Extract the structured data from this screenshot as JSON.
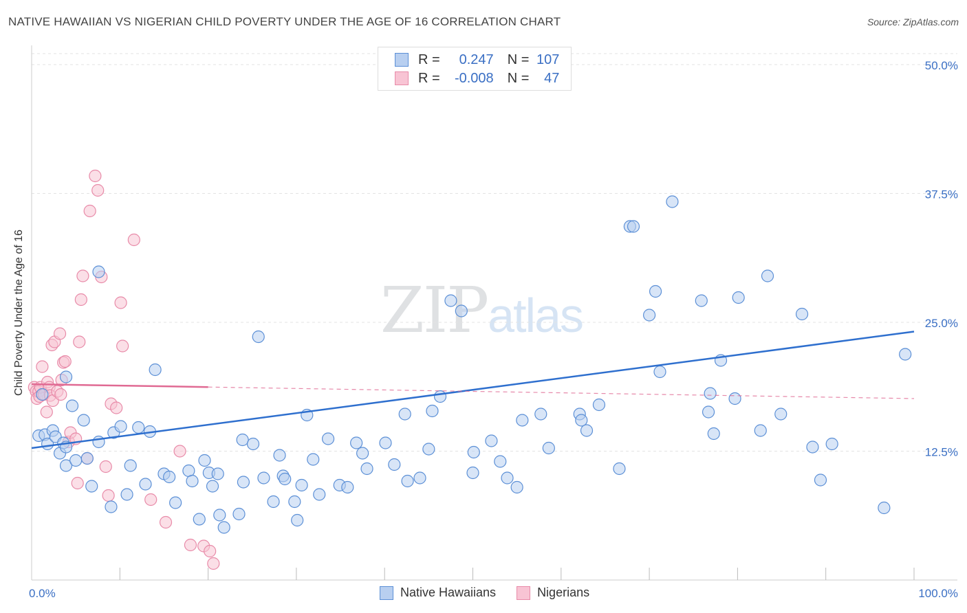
{
  "title": "NATIVE HAWAIIAN VS NIGERIAN CHILD POVERTY UNDER THE AGE OF 16 CORRELATION CHART",
  "source": "Source: ZipAtlas.com",
  "watermark": {
    "zip": "ZIP",
    "atlas": "atlas"
  },
  "legend": {
    "r_label": "R =",
    "n_label": "N =",
    "rows": [
      {
        "r": "0.247",
        "n": "107"
      },
      {
        "r": "-0.008",
        "n": "47"
      }
    ]
  },
  "colors": {
    "blue_fill": "#b8cff0",
    "blue_stroke": "#5b8fd6",
    "blue_line": "#2e6fce",
    "pink_fill": "#f8c4d4",
    "pink_stroke": "#e88aa8",
    "pink_line": "#e06a93",
    "tick_text": "#3a6fc4",
    "grid": "#e3e3e3"
  },
  "chart_data": {
    "type": "scatter",
    "title": "NATIVE HAWAIIAN VS NIGERIAN CHILD POVERTY UNDER THE AGE OF 16 CORRELATION CHART",
    "xlabel": "",
    "ylabel": "Child Poverty Under the Age of 16",
    "xlim": [
      0,
      100
    ],
    "ylim": [
      0,
      50
    ],
    "x_tick_labels": [
      "0.0%",
      "100.0%"
    ],
    "y_ticks": [
      12.5,
      25.0,
      37.5,
      50.0
    ],
    "y_tick_labels": [
      "12.5%",
      "25.0%",
      "37.5%",
      "50.0%"
    ],
    "grid": true,
    "series": [
      {
        "name": "Native Hawaiians",
        "r": 0.247,
        "n": 107,
        "trend": {
          "x0": 0,
          "y0": 12.8,
          "x1": 100,
          "y1": 24.1
        },
        "points": [
          [
            0.8,
            14.0
          ],
          [
            1.2,
            18.0
          ],
          [
            1.5,
            14.1
          ],
          [
            1.8,
            13.2
          ],
          [
            2.4,
            14.5
          ],
          [
            2.7,
            13.9
          ],
          [
            3.2,
            12.3
          ],
          [
            3.9,
            19.7
          ],
          [
            3.6,
            13.3
          ],
          [
            3.9,
            12.9
          ],
          [
            3.9,
            11.1
          ],
          [
            4.6,
            16.9
          ],
          [
            5.0,
            11.6
          ],
          [
            5.9,
            15.5
          ],
          [
            6.3,
            11.8
          ],
          [
            6.8,
            9.1
          ],
          [
            7.6,
            29.9
          ],
          [
            7.6,
            13.4
          ],
          [
            9.0,
            7.1
          ],
          [
            9.3,
            14.3
          ],
          [
            10.1,
            14.9
          ],
          [
            10.8,
            8.3
          ],
          [
            11.2,
            11.1
          ],
          [
            12.1,
            14.8
          ],
          [
            12.9,
            9.3
          ],
          [
            13.4,
            14.4
          ],
          [
            14.0,
            20.4
          ],
          [
            15.0,
            10.3
          ],
          [
            15.6,
            10.0
          ],
          [
            16.3,
            7.5
          ],
          [
            17.8,
            10.6
          ],
          [
            18.2,
            9.6
          ],
          [
            19.0,
            5.9
          ],
          [
            19.6,
            11.6
          ],
          [
            20.1,
            10.4
          ],
          [
            20.5,
            9.1
          ],
          [
            21.1,
            10.3
          ],
          [
            21.3,
            6.3
          ],
          [
            21.8,
            5.1
          ],
          [
            23.5,
            6.4
          ],
          [
            23.9,
            13.6
          ],
          [
            24.0,
            9.5
          ],
          [
            25.1,
            13.2
          ],
          [
            25.7,
            23.6
          ],
          [
            26.3,
            9.9
          ],
          [
            27.4,
            7.6
          ],
          [
            28.1,
            12.1
          ],
          [
            28.5,
            10.1
          ],
          [
            28.7,
            9.8
          ],
          [
            29.8,
            7.6
          ],
          [
            30.1,
            5.8
          ],
          [
            30.6,
            9.2
          ],
          [
            31.2,
            16.0
          ],
          [
            31.9,
            11.7
          ],
          [
            32.6,
            8.3
          ],
          [
            33.6,
            13.7
          ],
          [
            34.9,
            9.2
          ],
          [
            35.8,
            9.0
          ],
          [
            36.8,
            13.3
          ],
          [
            37.5,
            12.3
          ],
          [
            38.0,
            10.8
          ],
          [
            40.1,
            13.3
          ],
          [
            41.1,
            11.2
          ],
          [
            42.6,
            9.6
          ],
          [
            42.3,
            16.1
          ],
          [
            44.0,
            9.9
          ],
          [
            45.0,
            12.7
          ],
          [
            45.4,
            16.4
          ],
          [
            46.3,
            17.8
          ],
          [
            47.5,
            27.1
          ],
          [
            48.7,
            26.1
          ],
          [
            50.1,
            12.4
          ],
          [
            50.0,
            10.4
          ],
          [
            52.1,
            13.5
          ],
          [
            53.1,
            11.5
          ],
          [
            53.9,
            9.9
          ],
          [
            55.0,
            9.0
          ],
          [
            55.6,
            15.5
          ],
          [
            57.7,
            16.1
          ],
          [
            58.6,
            12.8
          ],
          [
            62.1,
            16.1
          ],
          [
            62.3,
            15.5
          ],
          [
            62.9,
            14.5
          ],
          [
            64.3,
            17.0
          ],
          [
            66.6,
            10.8
          ],
          [
            67.8,
            34.3
          ],
          [
            68.2,
            34.3
          ],
          [
            70.0,
            25.7
          ],
          [
            70.7,
            28.0
          ],
          [
            71.2,
            20.2
          ],
          [
            72.6,
            36.7
          ],
          [
            75.9,
            27.1
          ],
          [
            76.7,
            16.3
          ],
          [
            76.9,
            18.1
          ],
          [
            77.3,
            14.2
          ],
          [
            78.1,
            21.3
          ],
          [
            79.7,
            17.6
          ],
          [
            80.1,
            27.4
          ],
          [
            82.6,
            14.5
          ],
          [
            83.4,
            29.5
          ],
          [
            84.9,
            16.1
          ],
          [
            87.3,
            25.8
          ],
          [
            88.5,
            12.9
          ],
          [
            89.4,
            9.7
          ],
          [
            90.7,
            13.2
          ],
          [
            96.6,
            7.0
          ],
          [
            99.0,
            21.9
          ]
        ]
      },
      {
        "name": "Nigerians",
        "r": -0.008,
        "n": 47,
        "trend": {
          "x0": 0,
          "y0": 19.0,
          "x1": 100,
          "y1": 17.6
        },
        "points": [
          [
            0.3,
            18.7
          ],
          [
            0.5,
            18.3
          ],
          [
            0.6,
            17.6
          ],
          [
            0.8,
            18.3
          ],
          [
            0.9,
            17.8
          ],
          [
            1.0,
            18.7
          ],
          [
            1.2,
            20.7
          ],
          [
            1.4,
            18.0
          ],
          [
            1.7,
            16.3
          ],
          [
            1.8,
            19.2
          ],
          [
            2.0,
            18.7
          ],
          [
            2.1,
            17.9
          ],
          [
            2.3,
            22.8
          ],
          [
            2.4,
            17.4
          ],
          [
            2.6,
            23.1
          ],
          [
            2.9,
            18.3
          ],
          [
            3.2,
            23.9
          ],
          [
            3.3,
            18.0
          ],
          [
            3.4,
            19.4
          ],
          [
            3.6,
            21.1
          ],
          [
            3.8,
            21.2
          ],
          [
            4.2,
            13.4
          ],
          [
            4.4,
            14.3
          ],
          [
            5.0,
            13.7
          ],
          [
            5.2,
            9.4
          ],
          [
            5.4,
            23.1
          ],
          [
            5.6,
            27.2
          ],
          [
            5.8,
            29.5
          ],
          [
            6.3,
            11.8
          ],
          [
            6.6,
            35.8
          ],
          [
            7.2,
            39.2
          ],
          [
            7.5,
            37.8
          ],
          [
            7.9,
            29.4
          ],
          [
            8.4,
            11.0
          ],
          [
            8.7,
            8.2
          ],
          [
            9.0,
            17.1
          ],
          [
            9.6,
            16.7
          ],
          [
            10.1,
            26.9
          ],
          [
            10.3,
            22.7
          ],
          [
            11.6,
            33.0
          ],
          [
            13.5,
            7.8
          ],
          [
            15.2,
            5.6
          ],
          [
            16.8,
            12.5
          ],
          [
            18.0,
            3.4
          ],
          [
            19.5,
            3.3
          ],
          [
            20.2,
            2.8
          ],
          [
            20.6,
            1.6
          ]
        ]
      }
    ]
  }
}
